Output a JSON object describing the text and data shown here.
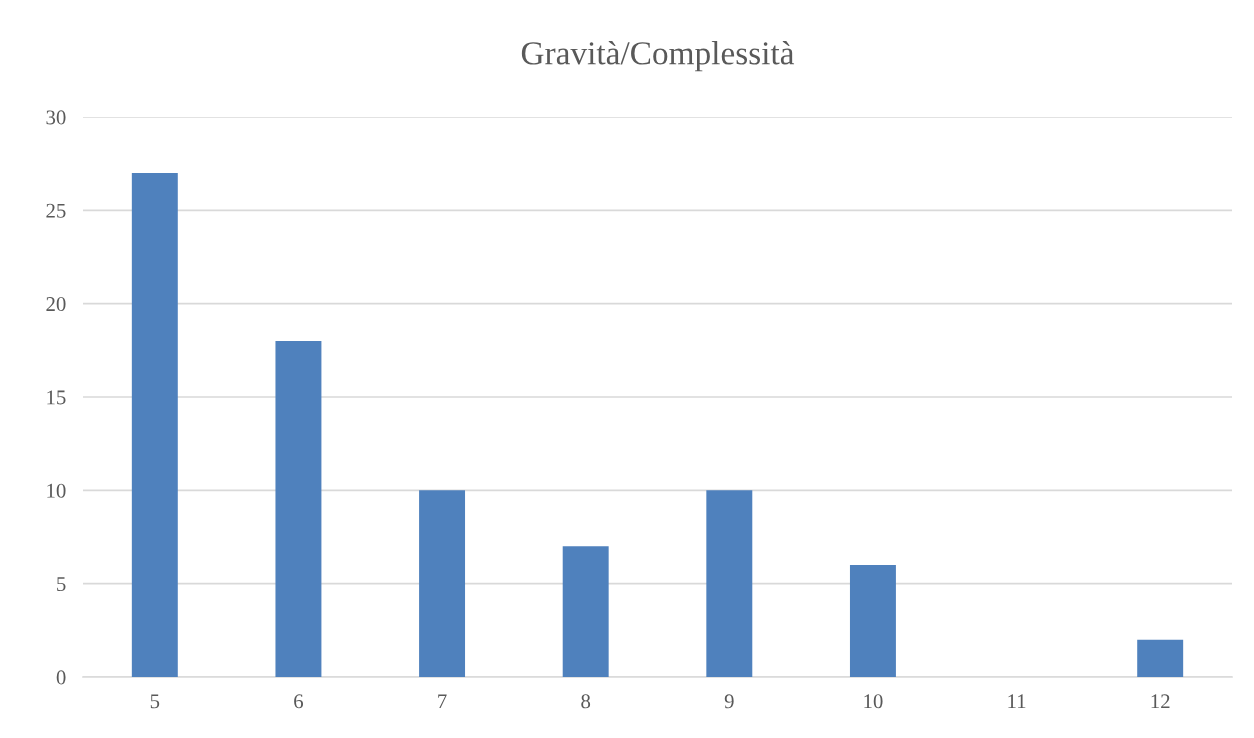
{
  "chart_data": {
    "type": "bar",
    "title": "Gravità/Complessità",
    "categories": [
      "5",
      "6",
      "7",
      "8",
      "9",
      "10",
      "11",
      "12"
    ],
    "values": [
      27,
      18,
      10,
      7,
      10,
      6,
      0,
      2
    ],
    "color": "#4f81bd",
    "ylim": [
      0,
      30
    ],
    "yticks": [
      0,
      5,
      10,
      15,
      20,
      25,
      30
    ],
    "grid": "y"
  }
}
